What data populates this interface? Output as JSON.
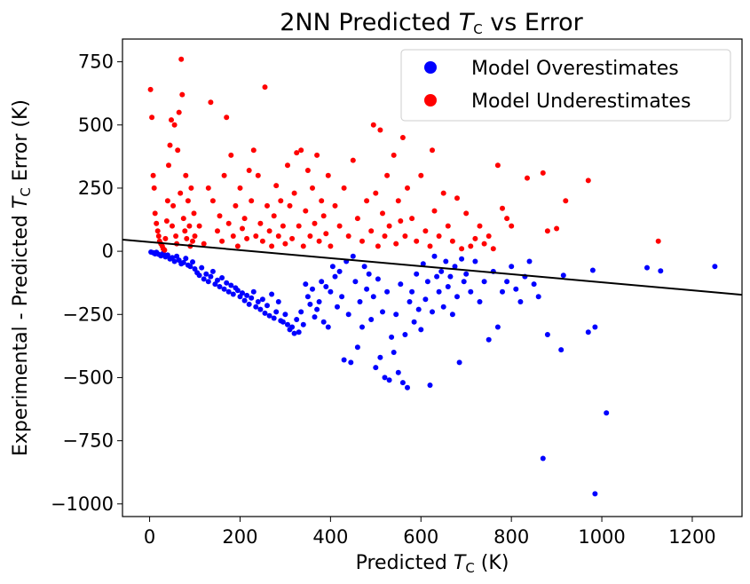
{
  "chart_data": {
    "type": "scatter",
    "title": {
      "pre": "2NN Predicted ",
      "sym": "T",
      "sub": "C",
      "post": " vs Error"
    },
    "xlabel": {
      "pre": "Predicted ",
      "sym": "T",
      "sub": "C",
      "post": " (K)"
    },
    "ylabel": {
      "pre": "Experimental - Predicted ",
      "sym": "T",
      "sub": "C",
      "post": " Error (K)"
    },
    "xlim": [
      -60,
      1310
    ],
    "ylim": [
      -1050,
      840
    ],
    "x_ticks": [
      0,
      200,
      400,
      600,
      800,
      1000,
      1200
    ],
    "x_tick_labels": [
      "0",
      "200",
      "400",
      "600",
      "800",
      "1000",
      "1200"
    ],
    "y_ticks": [
      750,
      500,
      250,
      0,
      -250,
      -500,
      -750,
      -1000
    ],
    "y_tick_labels": [
      "750",
      "500",
      "250",
      "0",
      "−250",
      "−500",
      "−750",
      "−1000"
    ],
    "grid": false,
    "legend_position": "top-right",
    "fit_line": {
      "x": [
        -60,
        1310
      ],
      "y": [
        46,
        -172
      ],
      "color": "#000000"
    },
    "series": [
      {
        "name": "Model Overestimates",
        "color": "#0000ff",
        "points": [
          [
            3,
            -3
          ],
          [
            8,
            -6
          ],
          [
            12,
            -10
          ],
          [
            15,
            -4
          ],
          [
            20,
            -12
          ],
          [
            25,
            -18
          ],
          [
            30,
            -8
          ],
          [
            35,
            -22
          ],
          [
            40,
            -15
          ],
          [
            45,
            -30
          ],
          [
            50,
            -25
          ],
          [
            55,
            -40
          ],
          [
            60,
            -20
          ],
          [
            65,
            -35
          ],
          [
            70,
            -50
          ],
          [
            75,
            -45
          ],
          [
            80,
            -28
          ],
          [
            85,
            -55
          ],
          [
            90,
            -60
          ],
          [
            95,
            -42
          ],
          [
            100,
            -70
          ],
          [
            105,
            -85
          ],
          [
            110,
            -95
          ],
          [
            115,
            -65
          ],
          [
            120,
            -110
          ],
          [
            125,
            -90
          ],
          [
            130,
            -120
          ],
          [
            135,
            -100
          ],
          [
            140,
            -80
          ],
          [
            145,
            -130
          ],
          [
            150,
            -115
          ],
          [
            155,
            -140
          ],
          [
            160,
            -105
          ],
          [
            165,
            -150
          ],
          [
            170,
            -125
          ],
          [
            175,
            -160
          ],
          [
            180,
            -135
          ],
          [
            185,
            -170
          ],
          [
            190,
            -145
          ],
          [
            195,
            -155
          ],
          [
            200,
            -180
          ],
          [
            205,
            -165
          ],
          [
            210,
            -195
          ],
          [
            215,
            -175
          ],
          [
            220,
            -210
          ],
          [
            225,
            -185
          ],
          [
            230,
            -160
          ],
          [
            235,
            -220
          ],
          [
            240,
            -200
          ],
          [
            245,
            -230
          ],
          [
            250,
            -190
          ],
          [
            255,
            -245
          ],
          [
            260,
            -215
          ],
          [
            265,
            -255
          ],
          [
            270,
            -170
          ],
          [
            275,
            -265
          ],
          [
            280,
            -240
          ],
          [
            285,
            -200
          ],
          [
            290,
            -275
          ],
          [
            295,
            -280
          ],
          [
            300,
            -250
          ],
          [
            305,
            -290
          ],
          [
            310,
            -310
          ],
          [
            315,
            -300
          ],
          [
            320,
            -325
          ],
          [
            325,
            -270
          ],
          [
            330,
            -320
          ],
          [
            335,
            -240
          ],
          [
            340,
            -290
          ],
          [
            345,
            -130
          ],
          [
            350,
            -180
          ],
          [
            355,
            -210
          ],
          [
            360,
            -150
          ],
          [
            365,
            -260
          ],
          [
            370,
            -230
          ],
          [
            375,
            -200
          ],
          [
            380,
            -120
          ],
          [
            385,
            -280
          ],
          [
            390,
            -140
          ],
          [
            395,
            -300
          ],
          [
            400,
            -160
          ],
          [
            405,
            -60
          ],
          [
            410,
            -100
          ],
          [
            415,
            -220
          ],
          [
            420,
            -80
          ],
          [
            425,
            -180
          ],
          [
            430,
            -430
          ],
          [
            435,
            -40
          ],
          [
            440,
            -250
          ],
          [
            445,
            -440
          ],
          [
            450,
            -20
          ],
          [
            455,
            -120
          ],
          [
            460,
            -380
          ],
          [
            465,
            -200
          ],
          [
            470,
            -300
          ],
          [
            475,
            -60
          ],
          [
            480,
            -150
          ],
          [
            485,
            -90
          ],
          [
            490,
            -270
          ],
          [
            495,
            -180
          ],
          [
            500,
            -460
          ],
          [
            505,
            -110
          ],
          [
            510,
            -420
          ],
          [
            515,
            -240
          ],
          [
            520,
            -500
          ],
          [
            525,
            -160
          ],
          [
            530,
            -510
          ],
          [
            535,
            -340
          ],
          [
            540,
            -400
          ],
          [
            545,
            -250
          ],
          [
            550,
            -480
          ],
          [
            555,
            -130
          ],
          [
            560,
            -520
          ],
          [
            565,
            -330
          ],
          [
            570,
            -540
          ],
          [
            575,
            -200
          ],
          [
            580,
            -160
          ],
          [
            585,
            -280
          ],
          [
            590,
            -90
          ],
          [
            595,
            -230
          ],
          [
            600,
            -310
          ],
          [
            605,
            -50
          ],
          [
            610,
            -190
          ],
          [
            615,
            -120
          ],
          [
            620,
            -530
          ],
          [
            625,
            -240
          ],
          [
            630,
            -20
          ],
          [
            635,
            -100
          ],
          [
            640,
            -160
          ],
          [
            645,
            -80
          ],
          [
            650,
            -220
          ],
          [
            655,
            -40
          ],
          [
            660,
            -140
          ],
          [
            665,
            -100
          ],
          [
            670,
            -250
          ],
          [
            675,
            -60
          ],
          [
            680,
            -180
          ],
          [
            685,
            -440
          ],
          [
            690,
            -30
          ],
          [
            695,
            -120
          ],
          [
            700,
            -90
          ],
          [
            710,
            -160
          ],
          [
            720,
            -40
          ],
          [
            730,
            -200
          ],
          [
            740,
            -120
          ],
          [
            750,
            -350
          ],
          [
            760,
            -80
          ],
          [
            770,
            -300
          ],
          [
            780,
            -160
          ],
          [
            790,
            -120
          ],
          [
            800,
            -60
          ],
          [
            810,
            -150
          ],
          [
            820,
            -200
          ],
          [
            830,
            -100
          ],
          [
            840,
            -40
          ],
          [
            850,
            -130
          ],
          [
            860,
            -180
          ],
          [
            870,
            -820
          ],
          [
            880,
            -330
          ],
          [
            910,
            -390
          ],
          [
            915,
            -95
          ],
          [
            970,
            -320
          ],
          [
            980,
            -75
          ],
          [
            985,
            -300
          ],
          [
            985,
            -960
          ],
          [
            1010,
            -640
          ],
          [
            1100,
            -65
          ],
          [
            1130,
            -78
          ],
          [
            1250,
            -60
          ]
        ]
      },
      {
        "name": "Model Underestimates",
        "color": "#ff0000",
        "points": [
          [
            2,
            640
          ],
          [
            5,
            530
          ],
          [
            8,
            300
          ],
          [
            10,
            250
          ],
          [
            12,
            150
          ],
          [
            15,
            110
          ],
          [
            18,
            80
          ],
          [
            20,
            60
          ],
          [
            22,
            40
          ],
          [
            25,
            30
          ],
          [
            28,
            20
          ],
          [
            30,
            10
          ],
          [
            33,
            5
          ],
          [
            35,
            50
          ],
          [
            38,
            120
          ],
          [
            40,
            200
          ],
          [
            42,
            340
          ],
          [
            45,
            420
          ],
          [
            48,
            520
          ],
          [
            50,
            100
          ],
          [
            52,
            180
          ],
          [
            55,
            500
          ],
          [
            58,
            60
          ],
          [
            60,
            30
          ],
          [
            62,
            400
          ],
          [
            65,
            550
          ],
          [
            68,
            230
          ],
          [
            70,
            760
          ],
          [
            72,
            620
          ],
          [
            75,
            130
          ],
          [
            78,
            80
          ],
          [
            80,
            300
          ],
          [
            82,
            50
          ],
          [
            85,
            200
          ],
          [
            88,
            100
          ],
          [
            90,
            20
          ],
          [
            92,
            250
          ],
          [
            95,
            40
          ],
          [
            98,
            150
          ],
          [
            100,
            60
          ],
          [
            110,
            100
          ],
          [
            120,
            30
          ],
          [
            130,
            250
          ],
          [
            135,
            590
          ],
          [
            140,
            200
          ],
          [
            150,
            80
          ],
          [
            155,
            140
          ],
          [
            160,
            40
          ],
          [
            165,
            300
          ],
          [
            170,
            530
          ],
          [
            175,
            110
          ],
          [
            180,
            380
          ],
          [
            185,
            60
          ],
          [
            190,
            180
          ],
          [
            195,
            20
          ],
          [
            200,
            250
          ],
          [
            205,
            90
          ],
          [
            210,
            130
          ],
          [
            215,
            50
          ],
          [
            220,
            320
          ],
          [
            225,
            200
          ],
          [
            230,
            400
          ],
          [
            235,
            60
          ],
          [
            240,
            300
          ],
          [
            245,
            110
          ],
          [
            250,
            40
          ],
          [
            255,
            650
          ],
          [
            260,
            180
          ],
          [
            265,
            80
          ],
          [
            270,
            20
          ],
          [
            275,
            140
          ],
          [
            280,
            260
          ],
          [
            285,
            60
          ],
          [
            290,
            200
          ],
          [
            295,
            100
          ],
          [
            300,
            30
          ],
          [
            305,
            340
          ],
          [
            310,
            180
          ],
          [
            315,
            50
          ],
          [
            320,
            230
          ],
          [
            325,
            390
          ],
          [
            330,
            100
          ],
          [
            335,
            400
          ],
          [
            340,
            20
          ],
          [
            345,
            160
          ],
          [
            350,
            320
          ],
          [
            355,
            60
          ],
          [
            360,
            250
          ],
          [
            365,
            110
          ],
          [
            370,
            380
          ],
          [
            375,
            40
          ],
          [
            380,
            200
          ],
          [
            385,
            140
          ],
          [
            390,
            70
          ],
          [
            395,
            300
          ],
          [
            400,
            20
          ],
          [
            410,
            180
          ],
          [
            420,
            100
          ],
          [
            430,
            250
          ],
          [
            440,
            60
          ],
          [
            450,
            360
          ],
          [
            460,
            130
          ],
          [
            470,
            40
          ],
          [
            480,
            200
          ],
          [
            490,
            80
          ],
          [
            495,
            500
          ],
          [
            500,
            230
          ],
          [
            505,
            20
          ],
          [
            510,
            480
          ],
          [
            515,
            150
          ],
          [
            520,
            60
          ],
          [
            525,
            300
          ],
          [
            530,
            100
          ],
          [
            540,
            380
          ],
          [
            545,
            30
          ],
          [
            550,
            200
          ],
          [
            555,
            120
          ],
          [
            560,
            450
          ],
          [
            565,
            60
          ],
          [
            570,
            250
          ],
          [
            580,
            130
          ],
          [
            590,
            40
          ],
          [
            600,
            300
          ],
          [
            610,
            80
          ],
          [
            620,
            20
          ],
          [
            625,
            400
          ],
          [
            630,
            160
          ],
          [
            640,
            60
          ],
          [
            650,
            230
          ],
          [
            660,
            100
          ],
          [
            670,
            40
          ],
          [
            680,
            210
          ],
          [
            690,
            10
          ],
          [
            700,
            150
          ],
          [
            710,
            20
          ],
          [
            720,
            50
          ],
          [
            730,
            100
          ],
          [
            740,
            30
          ],
          [
            750,
            60
          ],
          [
            760,
            10
          ],
          [
            770,
            340
          ],
          [
            780,
            170
          ],
          [
            790,
            130
          ],
          [
            800,
            100
          ],
          [
            835,
            290
          ],
          [
            870,
            310
          ],
          [
            880,
            80
          ],
          [
            900,
            90
          ],
          [
            920,
            200
          ],
          [
            970,
            280
          ],
          [
            1125,
            40
          ]
        ]
      }
    ]
  }
}
